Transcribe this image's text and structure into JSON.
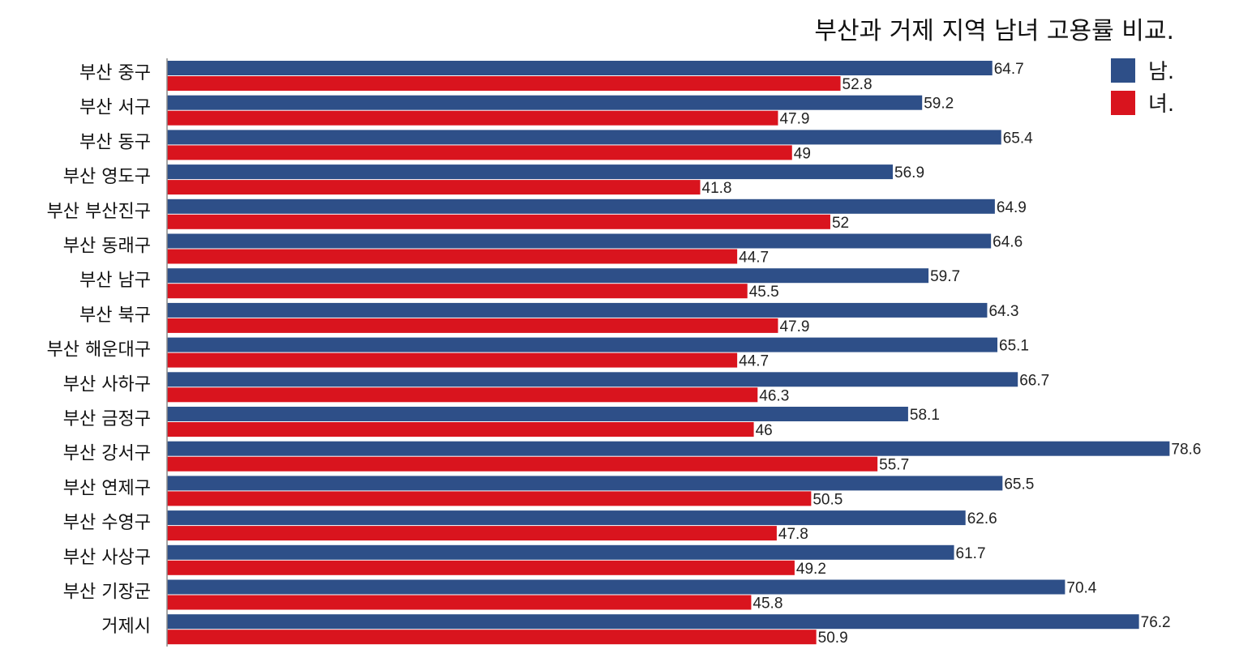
{
  "chart_data": {
    "type": "bar",
    "orientation": "horizontal",
    "title": "부산과 거제 지역 남녀 고용률 비교.",
    "categories": [
      "부산 중구",
      "부산 서구",
      "부산 동구",
      "부산 영도구",
      "부산 부산진구",
      "부산 동래구",
      "부산 남구",
      "부산 북구",
      "부산 해운대구",
      "부산 사하구",
      "부산 금정구",
      "부산 강서구",
      "부산 연제구",
      "부산 수영구",
      "부산 사상구",
      "부산 기장군",
      "거제시"
    ],
    "series": [
      {
        "name": "남.",
        "color": "#2e4f88",
        "values": [
          64.7,
          59.2,
          65.4,
          56.9,
          64.9,
          64.6,
          59.7,
          64.3,
          65.1,
          66.7,
          58.1,
          78.6,
          65.5,
          62.6,
          61.7,
          70.4,
          76.2
        ]
      },
      {
        "name": "녀.",
        "color": "#d9141e",
        "values": [
          52.8,
          47.9,
          49,
          41.8,
          52,
          44.7,
          45.5,
          47.9,
          44.7,
          46.3,
          46,
          55.7,
          50.5,
          47.8,
          49.2,
          45.8,
          50.9
        ]
      }
    ],
    "xlim": [
      0,
      80
    ],
    "grid": false,
    "data_labels": true,
    "legend_position": "top-right"
  }
}
